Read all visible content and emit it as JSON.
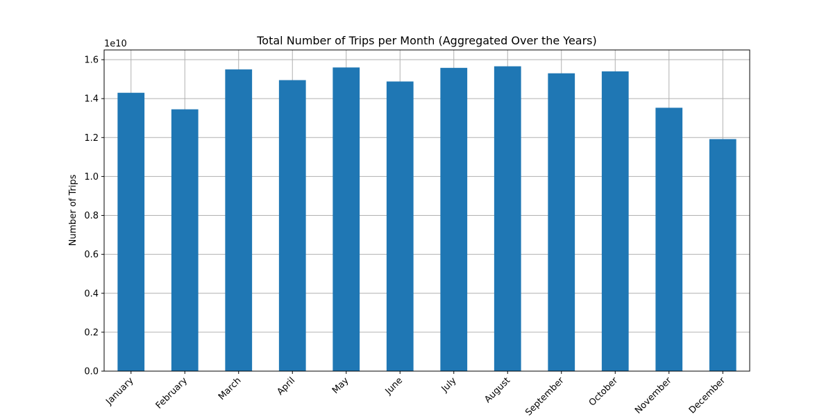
{
  "chart_data": {
    "type": "bar",
    "title": "Total Number of Trips per Month (Aggregated Over the Years)",
    "xlabel": "",
    "ylabel": "Number of Trips",
    "y_offset_label": "1e10",
    "categories": [
      "January",
      "February",
      "March",
      "April",
      "May",
      "June",
      "July",
      "August",
      "September",
      "October",
      "November",
      "December"
    ],
    "values": [
      14300000000,
      13450000000,
      15500000000,
      14950000000,
      15600000000,
      14880000000,
      15580000000,
      15660000000,
      15300000000,
      15400000000,
      13530000000,
      11920000000
    ],
    "ylim": [
      0,
      16500000000
    ],
    "yticks": [
      0,
      2000000000,
      4000000000,
      6000000000,
      8000000000,
      10000000000,
      12000000000,
      14000000000,
      16000000000
    ],
    "ytick_labels": [
      "0.0",
      "0.2",
      "0.4",
      "0.6",
      "0.8",
      "1.0",
      "1.2",
      "1.4",
      "1.6"
    ],
    "grid": true,
    "bar_color": "#1f77b4",
    "grid_color": "#b0b0b0"
  }
}
